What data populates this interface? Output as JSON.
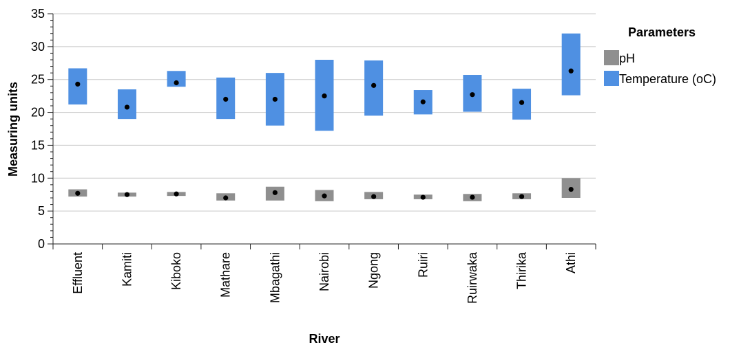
{
  "chart_data": {
    "type": "range",
    "xlabel": "River",
    "ylabel": "Measuring units",
    "ylim": [
      0,
      35
    ],
    "yticks": [
      0,
      5,
      10,
      15,
      20,
      25,
      30,
      35
    ],
    "grid": "horizontal",
    "legend_title": "Parameters",
    "legend_placement": "right",
    "categories": [
      "Effluent",
      "Kamiti",
      "Kiboko",
      "Mathare",
      "Mbagathi",
      "Nairobi",
      "Ngong",
      "Ruiri",
      "Ruirwaka",
      "Thirika",
      "Athi"
    ],
    "series": [
      {
        "name": "pH",
        "color": "#8f8f8f",
        "min": [
          7.2,
          7.2,
          7.3,
          6.6,
          6.6,
          6.5,
          6.8,
          6.8,
          6.5,
          6.8,
          7.0
        ],
        "max": [
          8.3,
          7.8,
          7.9,
          7.7,
          8.7,
          8.2,
          7.9,
          7.5,
          7.6,
          7.7,
          10.0
        ],
        "mean": [
          7.7,
          7.5,
          7.6,
          7.0,
          7.8,
          7.3,
          7.2,
          7.1,
          7.1,
          7.2,
          8.3
        ]
      },
      {
        "name": "Temperature (oC)",
        "color": "#4f90e2",
        "min": [
          21.2,
          19.0,
          23.9,
          19.0,
          18.0,
          17.2,
          19.5,
          19.7,
          20.1,
          18.9,
          22.6
        ],
        "max": [
          26.7,
          23.5,
          26.3,
          25.3,
          26.0,
          28.0,
          27.9,
          23.4,
          25.7,
          23.6,
          32.0
        ],
        "mean": [
          24.3,
          20.8,
          24.5,
          22.0,
          22.0,
          22.5,
          24.1,
          21.6,
          22.7,
          21.5,
          26.3
        ]
      }
    ]
  }
}
